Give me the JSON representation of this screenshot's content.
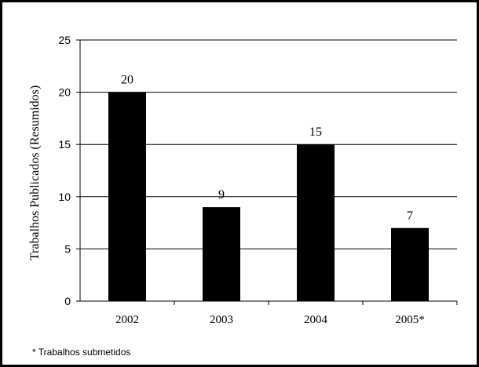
{
  "chart_data": {
    "type": "bar",
    "categories": [
      "2002",
      "2003",
      "2004",
      "2005*"
    ],
    "values": [
      20,
      9,
      15,
      7
    ],
    "data_labels": [
      "20",
      "9",
      "15",
      "7"
    ],
    "title": "",
    "xlabel": "",
    "ylabel": "Trabalhos Publicados (Resumidos)",
    "ylim": [
      0,
      25
    ],
    "yticks": [
      0,
      5,
      10,
      15,
      20,
      25
    ],
    "grid": true,
    "bar_color": "#000000",
    "gridline_color": "#000000"
  },
  "footnote": "* Trabalhos submetidos"
}
